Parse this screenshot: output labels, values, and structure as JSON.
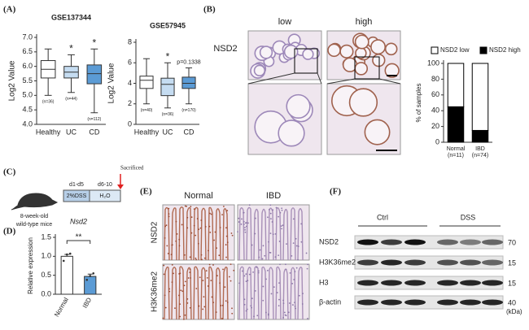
{
  "panel_labels": [
    "(A)",
    "(B)",
    "(C)",
    "(D)",
    "(E)",
    "(F)"
  ],
  "chart_data": [
    {
      "type": "box",
      "title": "GSE137344",
      "y_label": "Log2 Value",
      "ylim": [
        4.0,
        7.0
      ],
      "yticks": [
        {
          "value": 4.0,
          "label": "4.0"
        },
        {
          "value": 4.5,
          "label": "4.5"
        },
        {
          "value": 5.0,
          "label": "5.0"
        },
        {
          "value": 5.5,
          "label": "5.5"
        },
        {
          "value": 6.0,
          "label": "6.0"
        },
        {
          "value": 6.5,
          "label": "6.5"
        },
        {
          "value": 7.0,
          "label": "7.0"
        }
      ],
      "categories": [
        "Healthy",
        "UC",
        "CD"
      ],
      "colors": [
        "#ffffff",
        "#c5dcf1",
        "#5b9bd5"
      ],
      "boxes": [
        {
          "min": 5.0,
          "q1": 5.6,
          "median": 5.9,
          "q3": 6.2,
          "max": 6.6
        },
        {
          "min": 5.1,
          "q1": 5.6,
          "median": 5.8,
          "q3": 6.0,
          "max": 6.4
        },
        {
          "min": 4.4,
          "q1": 5.4,
          "median": 5.75,
          "q3": 6.05,
          "max": 6.6
        }
      ],
      "n_labels": [
        "(n=36)",
        "(n=44)",
        "(n=112)"
      ],
      "annotations": [
        null,
        "*",
        "*"
      ]
    },
    {
      "type": "box",
      "title": "GSE57945",
      "y_label": "Log2 Value",
      "ylim": [
        0,
        8
      ],
      "yticks": [
        0,
        2,
        4,
        6,
        8
      ],
      "categories": [
        "Healthy",
        "UC",
        "CD"
      ],
      "colors": [
        "#ffffff",
        "#c5dcf1",
        "#5b9bd5"
      ],
      "boxes": [
        {
          "min": 2.0,
          "q1": 3.5,
          "median": 4.3,
          "q3": 4.7,
          "max": 6.4
        },
        {
          "min": 1.6,
          "q1": 2.8,
          "median": 3.9,
          "q3": 4.5,
          "max": 6.0
        },
        {
          "min": 2.0,
          "q1": 3.5,
          "median": 4.0,
          "q3": 4.6,
          "max": 5.5
        }
      ],
      "n_labels": [
        "(n=40)",
        "(n=36)",
        "(n=170)"
      ],
      "annotations": [
        null,
        "*",
        "p=0.1338"
      ]
    },
    {
      "type": "stacked_bar",
      "y_label": "% of samples",
      "ylim": [
        0,
        100
      ],
      "yticks": [
        0,
        20,
        40,
        60,
        80,
        100
      ],
      "categories": [
        "Normal",
        "IBD"
      ],
      "n_labels": [
        "(n=11)",
        "(n=74)"
      ],
      "series": [
        {
          "name": "NSD2 low",
          "color": "#ffffff",
          "values": [
            55,
            85
          ]
        },
        {
          "name": "NSD2 high",
          "color": "#000000",
          "values": [
            45,
            15
          ]
        }
      ]
    },
    {
      "type": "bar",
      "title": "Nsd2",
      "y_label": "Relative expression",
      "ylim": [
        0,
        1.5
      ],
      "yticks": [
        {
          "value": 0,
          "label": "0.0"
        },
        {
          "value": 0.5,
          "label": "0.5"
        },
        {
          "value": 1.0,
          "label": "1.0"
        },
        {
          "value": 1.5,
          "label": "1.5"
        }
      ],
      "categories": [
        "Normal",
        "IBD"
      ],
      "values": [
        1.0,
        0.47
      ],
      "errors": [
        0.05,
        0.06
      ],
      "colors": [
        "#ffffff",
        "#5b9bd5"
      ],
      "points": [
        [
          0.88,
          1.05,
          1.07
        ],
        [
          0.38,
          0.48,
          0.55
        ]
      ],
      "annotation": "**"
    }
  ],
  "panel_b": {
    "row_label": "NSD2",
    "columns": [
      "low",
      "high"
    ]
  },
  "panel_c": {
    "mouse": [
      "8-week-old",
      "wild-type mice"
    ],
    "days": [
      "d1-d5",
      "d6-10"
    ],
    "treatments": [
      "2%DSS",
      "H₂O"
    ],
    "endpoint": "Sacrificed"
  },
  "panel_e": {
    "columns": [
      "Normal",
      "IBD"
    ],
    "rows": [
      "NSD2",
      "H3K36me2"
    ]
  },
  "panel_f": {
    "groups": [
      "Ctrl",
      "DSS"
    ],
    "rows": [
      "NSD2",
      "H3K36me2",
      "H3",
      "β-actin"
    ],
    "markers": [
      "70",
      "15",
      "15",
      "40"
    ],
    "unit": "(kDa)"
  }
}
